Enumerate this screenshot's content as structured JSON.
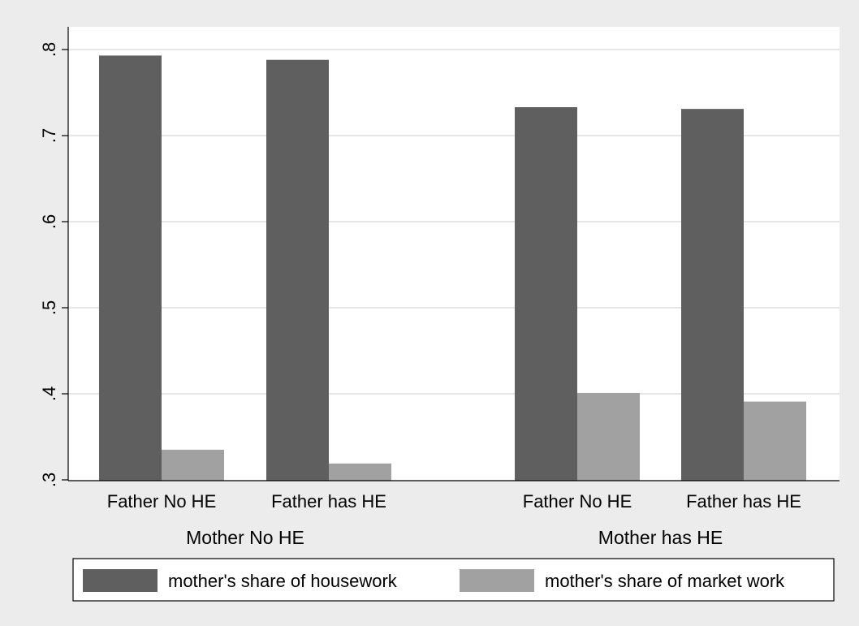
{
  "chart_data": {
    "type": "bar",
    "title": "",
    "xlabel": "",
    "ylabel": "",
    "ylim": [
      0.3,
      0.8
    ],
    "yticks": [
      ".3",
      ".4",
      ".5",
      ".6",
      ".7",
      ".8"
    ],
    "grid": true,
    "legend_position": "bottom",
    "groups": [
      {
        "label": "Mother No HE",
        "categories": [
          {
            "label": "Father No HE",
            "values": [
              0.793,
              0.335
            ]
          },
          {
            "label": "Father has HE",
            "values": [
              0.788,
              0.319
            ]
          }
        ]
      },
      {
        "label": "Mother has HE",
        "categories": [
          {
            "label": "Father No HE",
            "values": [
              0.733,
              0.401
            ]
          },
          {
            "label": "Father has HE",
            "values": [
              0.731,
              0.391
            ]
          }
        ]
      }
    ],
    "series": [
      {
        "name": "mother's share of housework",
        "color": "#5f5f5f"
      },
      {
        "name": "mother's share of market work",
        "color": "#a1a1a1"
      }
    ]
  }
}
